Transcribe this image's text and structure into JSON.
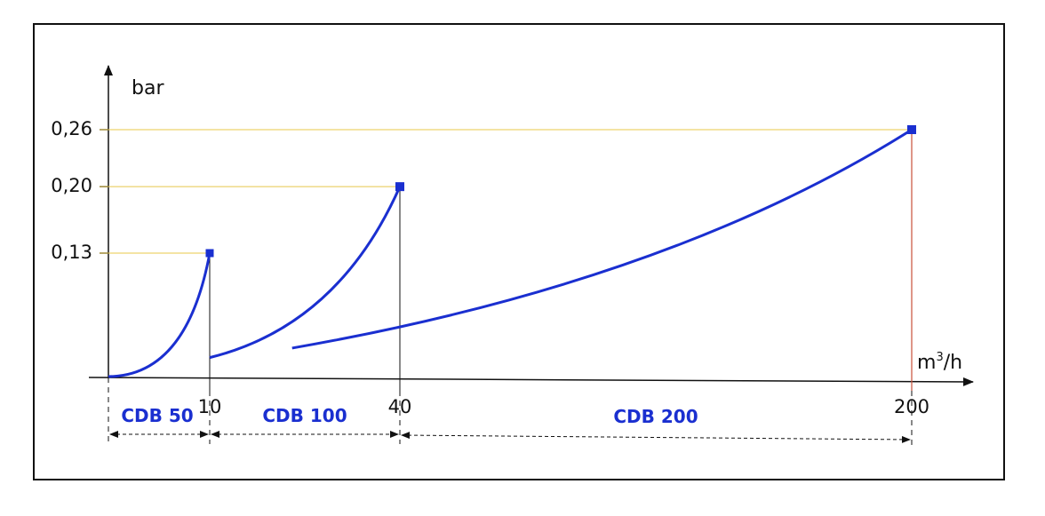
{
  "chart_data": {
    "type": "line",
    "ylabel": "bar",
    "xlabel_unit": "m",
    "xlabel_sup": "3",
    "xlabel_rest": "/h",
    "y_ticks": [
      0.13,
      0.2,
      0.26
    ],
    "y_tick_labels": [
      "0,13",
      "0,20",
      "0,26"
    ],
    "x_tick_labels": [
      "10",
      "40",
      "200"
    ],
    "ylim": [
      0,
      0.26
    ],
    "grid": false,
    "colors": {
      "series": "#1a2fd0",
      "axis": "#111111",
      "guide": "#e8c84a"
    },
    "series": [
      {
        "name": "CDB 50",
        "x": [
          0,
          10
        ],
        "y": [
          0,
          0.13
        ],
        "curve": "quadratic",
        "range": [
          0,
          10
        ]
      },
      {
        "name": "CDB 100",
        "x": [
          10,
          40
        ],
        "y": [
          0.02,
          0.2
        ],
        "curve": "quadratic",
        "range": [
          10,
          40
        ]
      },
      {
        "name": "CDB 200",
        "x": [
          23,
          200
        ],
        "y": [
          0.03,
          0.26
        ],
        "curve": "quadratic",
        "range": [
          40,
          200
        ]
      }
    ]
  }
}
